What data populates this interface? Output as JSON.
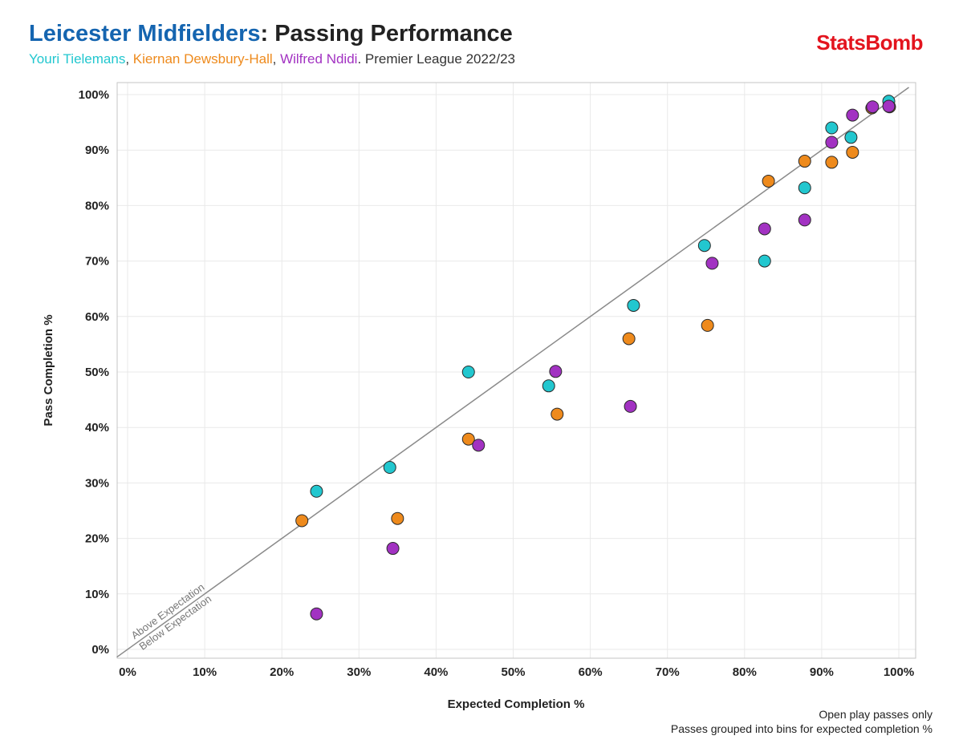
{
  "header": {
    "title_main": "Leicester Midfielders",
    "title_rest": ": Passing Performance",
    "subtitle": {
      "player1": "Youri Tielemans",
      "sep1": ", ",
      "player2": "Kiernan Dewsbury-Hall",
      "sep2": ", ",
      "player3": "Wilfred Ndidi",
      "rest": ". Premier League 2022/23"
    },
    "logo": "StatsBomb"
  },
  "notes": {
    "line1": "Open play passes only",
    "line2": "Passes grouped into bins for expected completion %"
  },
  "colors": {
    "title_blue": "#1565b0",
    "tielemans": "#22c7cf",
    "dewsbury_hall": "#ee8a1c",
    "ndidi": "#a232c2",
    "logo_red": "#e3141e",
    "diagonal": "#8a8a8a",
    "grid": "#e9e9e9"
  },
  "chart_data": {
    "type": "scatter",
    "title": "Leicester Midfielders: Passing Performance",
    "xlabel": "Expected Completion %",
    "ylabel": "Pass Completion %",
    "xlim": [
      0,
      100
    ],
    "ylim": [
      0,
      100
    ],
    "x_ticks": [
      "0%",
      "10%",
      "20%",
      "30%",
      "40%",
      "50%",
      "60%",
      "70%",
      "80%",
      "90%",
      "100%"
    ],
    "y_ticks": [
      "0%",
      "10%",
      "20%",
      "30%",
      "40%",
      "50%",
      "60%",
      "70%",
      "80%",
      "90%",
      "100%"
    ],
    "grid": true,
    "reference_line": {
      "label_above": "Above Expectation",
      "label_below": "Below Expectation"
    },
    "series": [
      {
        "name": "Youri Tielemans",
        "color": "#22c7cf",
        "points": [
          {
            "x": 24.5,
            "y": 28.5
          },
          {
            "x": 34.0,
            "y": 32.8
          },
          {
            "x": 44.2,
            "y": 50.0
          },
          {
            "x": 54.6,
            "y": 47.5
          },
          {
            "x": 65.6,
            "y": 62.0
          },
          {
            "x": 74.8,
            "y": 72.8
          },
          {
            "x": 82.6,
            "y": 70.0
          },
          {
            "x": 87.8,
            "y": 83.2
          },
          {
            "x": 91.3,
            "y": 94.0
          },
          {
            "x": 93.8,
            "y": 92.3
          },
          {
            "x": 98.7,
            "y": 98.8
          }
        ]
      },
      {
        "name": "Kiernan Dewsbury-Hall",
        "color": "#ee8a1c",
        "points": [
          {
            "x": 22.6,
            "y": 23.2
          },
          {
            "x": 35.0,
            "y": 23.6
          },
          {
            "x": 44.2,
            "y": 37.9
          },
          {
            "x": 55.7,
            "y": 42.4
          },
          {
            "x": 65.0,
            "y": 56.0
          },
          {
            "x": 75.2,
            "y": 58.4
          },
          {
            "x": 83.1,
            "y": 84.4
          },
          {
            "x": 87.8,
            "y": 88.0
          },
          {
            "x": 91.3,
            "y": 87.8
          },
          {
            "x": 94.0,
            "y": 89.6
          },
          {
            "x": 96.5,
            "y": 97.6
          },
          {
            "x": 98.8,
            "y": 97.8
          }
        ]
      },
      {
        "name": "Wilfred Ndidi",
        "color": "#a232c2",
        "points": [
          {
            "x": 24.5,
            "y": 6.4
          },
          {
            "x": 34.4,
            "y": 18.2
          },
          {
            "x": 45.5,
            "y": 36.8
          },
          {
            "x": 55.5,
            "y": 50.1
          },
          {
            "x": 65.2,
            "y": 43.8
          },
          {
            "x": 75.8,
            "y": 69.6
          },
          {
            "x": 82.6,
            "y": 75.8
          },
          {
            "x": 87.8,
            "y": 77.4
          },
          {
            "x": 91.3,
            "y": 91.4
          },
          {
            "x": 94.0,
            "y": 96.3
          },
          {
            "x": 96.6,
            "y": 97.8
          },
          {
            "x": 98.7,
            "y": 97.9
          }
        ]
      }
    ]
  }
}
